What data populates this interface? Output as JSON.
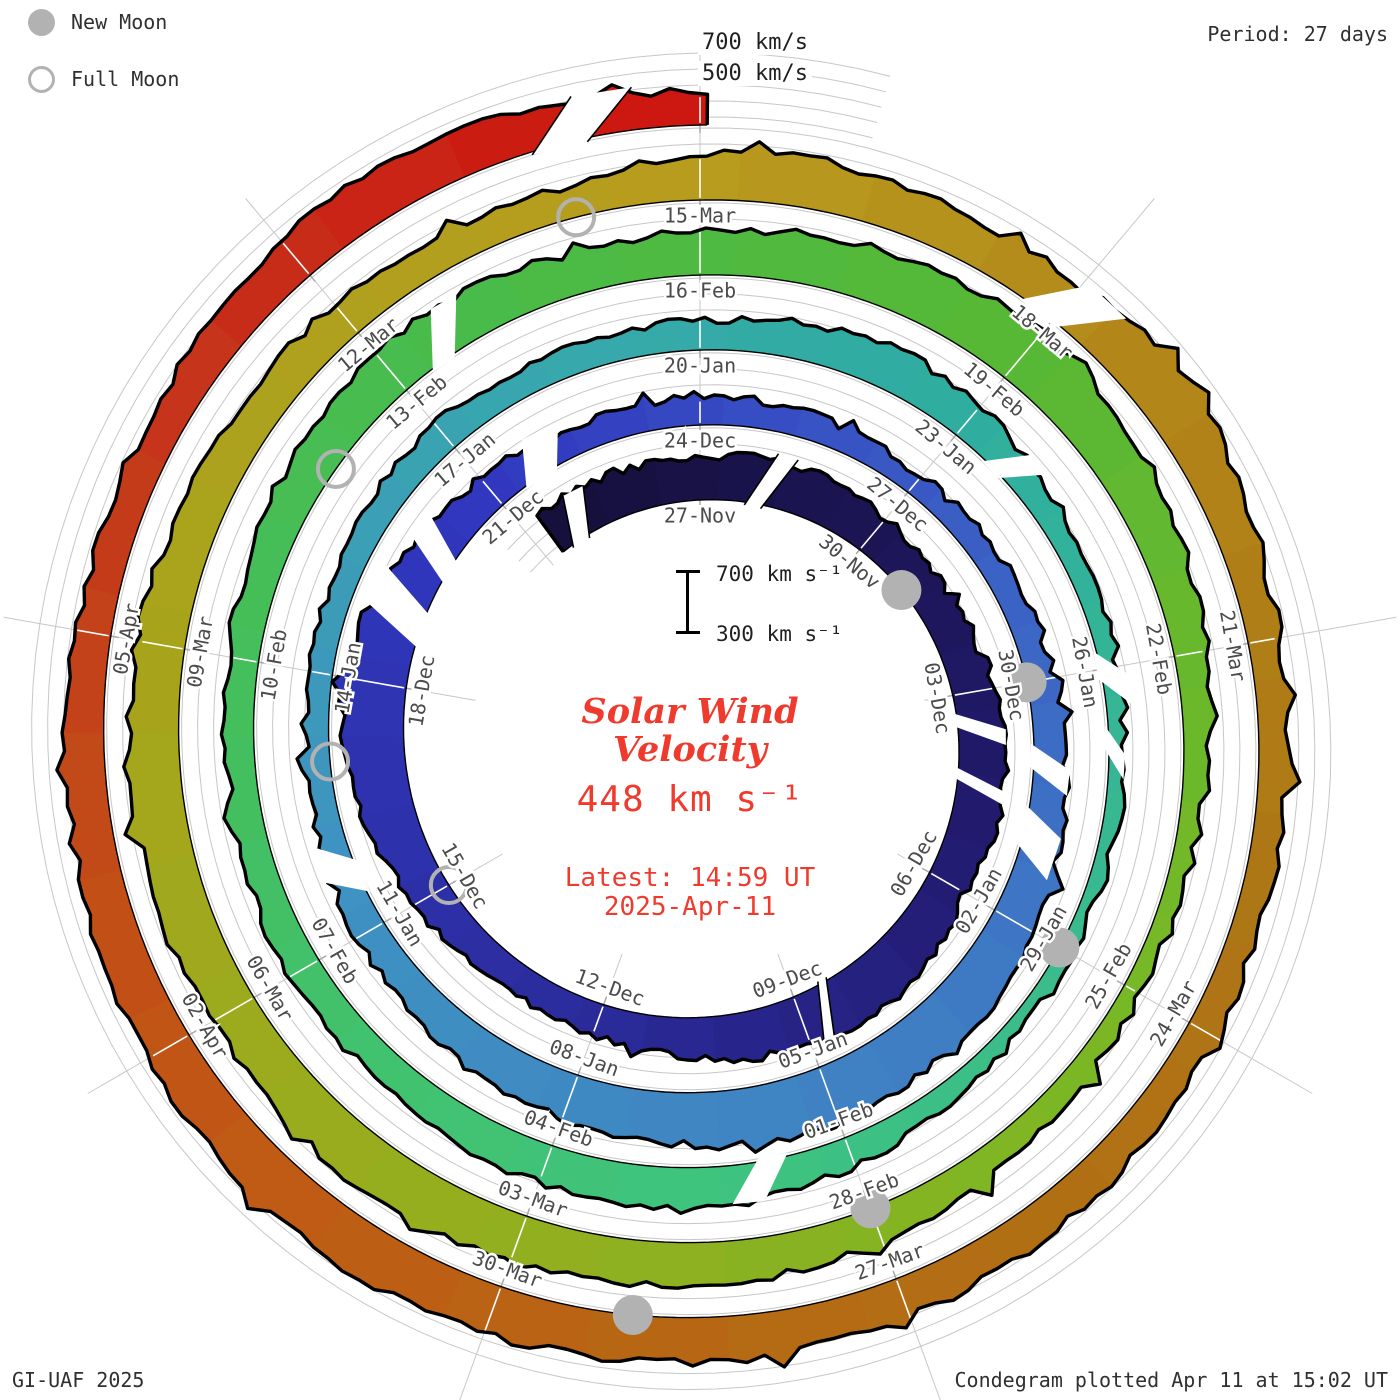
{
  "header": {
    "legend_new_moon": "New Moon",
    "legend_full_moon": "Full Moon",
    "period_label": "Period: 27 days"
  },
  "footer": {
    "credit": "GI-UAF 2025",
    "plotted": "Condegram plotted Apr 11 at 15:02 UT"
  },
  "center": {
    "title_line1": "Solar Wind",
    "title_line2": "Velocity",
    "current_value": "448 km s⁻¹",
    "latest_line1": "Latest: 14:59 UT",
    "latest_line2": "2025-Apr-11",
    "scale_top": "700 km s⁻¹",
    "scale_bottom": "300 km s⁻¹"
  },
  "reference_labels": {
    "outer_top": "700 km/s",
    "outer_bottom": "500 km/s"
  },
  "colors": {
    "annotation_red": "#ef3a2e",
    "text_dark": "#303030",
    "date_label_gray": "#4b4b4b",
    "grid_gray": "#c7c7c7",
    "tick_gray": "#a9a9a9",
    "moon_gray": "#b2b2b2",
    "band_edge_black": "#000000",
    "background": "#ffffff"
  },
  "chart_data": {
    "type": "area",
    "subtype": "polar-spiral-condegram",
    "title": "Solar Wind Velocity",
    "period_days": 27,
    "start_label": "27-Nov",
    "end_label": "2025-Apr-11 14:59 UT",
    "latest_velocity_km_s": 448,
    "velocity_scale": {
      "baseline_km_s": 250,
      "reference_arcs_km_s": [
        300,
        400,
        500,
        600,
        700
      ],
      "scale_bar_km_s": [
        300,
        700
      ]
    },
    "date_labels": [
      "27-Nov",
      "30-Nov",
      "03-Dec",
      "06-Dec",
      "09-Dec",
      "12-Dec",
      "15-Dec",
      "18-Dec",
      "21-Dec",
      "24-Dec",
      "27-Dec",
      "30-Dec",
      "02-Jan",
      "05-Jan",
      "08-Jan",
      "11-Jan",
      "14-Jan",
      "17-Jan",
      "20-Jan",
      "23-Jan",
      "26-Jan",
      "29-Jan",
      "01-Feb",
      "04-Feb",
      "07-Feb",
      "10-Feb",
      "13-Feb",
      "16-Feb",
      "19-Feb",
      "22-Feb",
      "25-Feb",
      "28-Feb",
      "03-Mar",
      "06-Mar",
      "09-Mar",
      "12-Mar",
      "15-Mar",
      "18-Mar",
      "21-Mar",
      "24-Mar",
      "27-Mar",
      "30-Mar",
      "02-Apr",
      "05-Apr"
    ],
    "date_label_step_days": 3,
    "first_day_index_of_velocity_array": -3,
    "start_day": -2.7,
    "end_day": 135.05,
    "daily_velocity_km_s": [
      520,
      535,
      525,
      515,
      540,
      530,
      505,
      480,
      470,
      520,
      555,
      540,
      505,
      555,
      595,
      575,
      535,
      480,
      445,
      425,
      450,
      500,
      555,
      615,
      645,
      600,
      520,
      465,
      430,
      420,
      440,
      420,
      392,
      380,
      400,
      420,
      432,
      450,
      480,
      540,
      578,
      600,
      618,
      600,
      560,
      540,
      520,
      480,
      442,
      420,
      402,
      390,
      400,
      420,
      440,
      430,
      420,
      432,
      478,
      520,
      480,
      420,
      380,
      358,
      350,
      340,
      330,
      342,
      380,
      438,
      488,
      520,
      500,
      470,
      452,
      460,
      440,
      422,
      440,
      480,
      520,
      558,
      540,
      500,
      520,
      558,
      598,
      620,
      580,
      520,
      460,
      400,
      370,
      360,
      390,
      440,
      478,
      500,
      520,
      558,
      578,
      560,
      540,
      558,
      578,
      550,
      520,
      500,
      480,
      462,
      450,
      540,
      558,
      520,
      520,
      610,
      500,
      452,
      430,
      420,
      440,
      460,
      480,
      500,
      520,
      540,
      558,
      578,
      560,
      540,
      520,
      490,
      470,
      460,
      480,
      520,
      555,
      510,
      455
    ],
    "new_moon_day_index": [
      4,
      33,
      63,
      93,
      122
    ],
    "full_moon_day_index": [
      18,
      47,
      77,
      107
    ],
    "data_gaps": [
      {
        "day": -2.5,
        "w": 0.35,
        "slant": 0.3,
        "hatched": true
      },
      {
        "day": 0.8,
        "w": 0.3,
        "slant": 0.35,
        "hatched": true
      },
      {
        "day": 6.3,
        "w": 0.22,
        "slant": 0.3,
        "hatched": false
      },
      {
        "day": 7.2,
        "w": 0.18,
        "slant": 0.3,
        "hatched": false
      },
      {
        "day": 11.4,
        "w": 0.15,
        "slant": 0.3,
        "hatched": true
      },
      {
        "day": 21.6,
        "w": 0.5,
        "slant": 0.35,
        "hatched": false
      },
      {
        "day": 22.6,
        "w": 0.35,
        "slant": 0.3,
        "hatched": false
      },
      {
        "day": 24.4,
        "w": 0.5,
        "slant": 0.3,
        "hatched": false
      },
      {
        "day": 33.8,
        "w": 0.3,
        "slant": 0.3,
        "hatched": false
      },
      {
        "day": 34.6,
        "w": 0.5,
        "slant": 0.3,
        "hatched": false
      },
      {
        "day": 45.4,
        "w": 0.4,
        "slant": 0.3,
        "hatched": false
      },
      {
        "day": 57.4,
        "w": 0.25,
        "slant": 0.3,
        "hatched": false
      },
      {
        "day": 59.8,
        "w": 0.3,
        "slant": 0.3,
        "hatched": false
      },
      {
        "day": 60.6,
        "w": 0.25,
        "slant": 0.3,
        "hatched": false
      },
      {
        "day": 66.6,
        "w": 0.3,
        "slant": 0.3,
        "hatched": false
      },
      {
        "day": 78.3,
        "w": 0.25,
        "slant": 0.3,
        "hatched": false
      },
      {
        "day": 110.7,
        "w": 0.35,
        "slant": 0.35,
        "hatched": false
      },
      {
        "day": 133.8,
        "w": 0.4,
        "slant": 0.35,
        "hatched": true
      }
    ],
    "color_stops": [
      {
        "day": -3,
        "color": "#140f38"
      },
      {
        "day": 8,
        "color": "#221a6e"
      },
      {
        "day": 16,
        "color": "#2b2d9f"
      },
      {
        "day": 24,
        "color": "#3138c0"
      },
      {
        "day": 31,
        "color": "#3b5fc5"
      },
      {
        "day": 38,
        "color": "#3f7fc3"
      },
      {
        "day": 46,
        "color": "#3f93c2"
      },
      {
        "day": 52,
        "color": "#38a7ad"
      },
      {
        "day": 57,
        "color": "#2fae9f"
      },
      {
        "day": 63,
        "color": "#3abb8d"
      },
      {
        "day": 68,
        "color": "#3fc47c"
      },
      {
        "day": 74,
        "color": "#44bf5f"
      },
      {
        "day": 79,
        "color": "#49bb4a"
      },
      {
        "day": 84,
        "color": "#58b834"
      },
      {
        "day": 90,
        "color": "#78b826"
      },
      {
        "day": 96,
        "color": "#92af1e"
      },
      {
        "day": 102,
        "color": "#a8a41c"
      },
      {
        "day": 108,
        "color": "#b89c1e"
      },
      {
        "day": 112,
        "color": "#b28519"
      },
      {
        "day": 116,
        "color": "#ad7615"
      },
      {
        "day": 121,
        "color": "#b56a14"
      },
      {
        "day": 125,
        "color": "#bf5a14"
      },
      {
        "day": 128,
        "color": "#c24818"
      },
      {
        "day": 131,
        "color": "#c6331c"
      },
      {
        "day": 134,
        "color": "#cb1a10"
      },
      {
        "day": 136,
        "color": "#cd1410"
      }
    ],
    "legend_position": "top-left",
    "grid": true
  }
}
